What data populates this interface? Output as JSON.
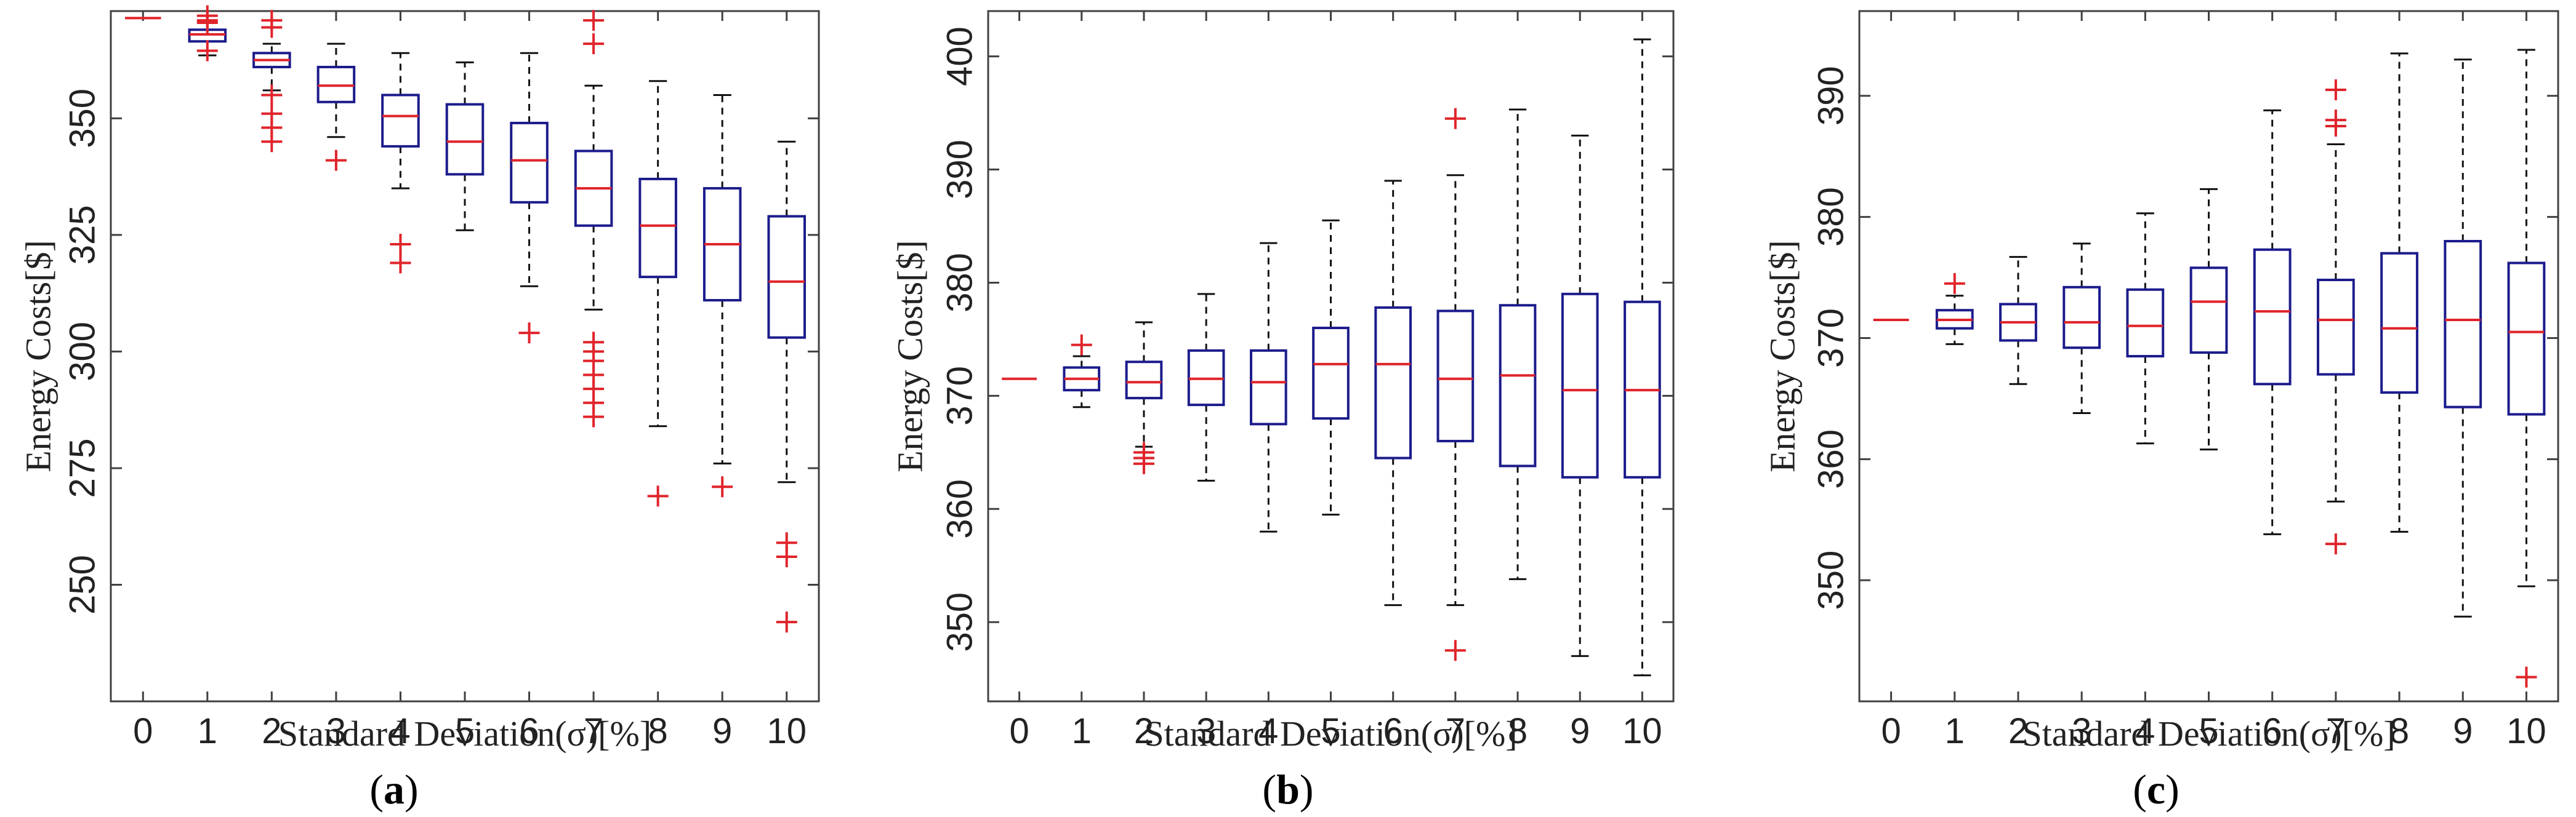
{
  "colors": {
    "box": "#1c1c8c",
    "median": "#e0242b",
    "outlier": "#e0242b",
    "whisker": "#111111",
    "axis": "#404040"
  },
  "chart_data": [
    {
      "type": "boxplot",
      "panel_label": "a",
      "title": "",
      "xlabel": "Standard Deviation(σ)[%]",
      "ylabel": "Energy Costs[$]",
      "categories": [
        "0",
        "1",
        "2",
        "3",
        "4",
        "5",
        "6",
        "7",
        "8",
        "9",
        "10"
      ],
      "ylim": [
        225,
        373
      ],
      "yticks": [
        250,
        275,
        300,
        325,
        350
      ],
      "boxes": [
        {
          "x": "0",
          "q1": 371.5,
          "median": 371.5,
          "q3": 371.5,
          "low": 371.5,
          "high": 371.5,
          "outliers": []
        },
        {
          "x": "1",
          "q1": 366.5,
          "median": 368,
          "q3": 369,
          "low": 363.5,
          "high": 372,
          "outliers": [
            371,
            372,
            370.5,
            364.5
          ]
        },
        {
          "x": "2",
          "q1": 361,
          "median": 362.5,
          "q3": 364,
          "low": 356,
          "high": 366,
          "outliers": [
            371,
            369.5,
            355,
            351,
            348,
            345
          ]
        },
        {
          "x": "3",
          "q1": 353.5,
          "median": 357,
          "q3": 361,
          "low": 346,
          "high": 366,
          "outliers": [
            341
          ]
        },
        {
          "x": "4",
          "q1": 344,
          "median": 350.5,
          "q3": 355,
          "low": 335,
          "high": 364,
          "outliers": [
            323,
            319
          ]
        },
        {
          "x": "5",
          "q1": 338,
          "median": 345,
          "q3": 353,
          "low": 326,
          "high": 362,
          "outliers": []
        },
        {
          "x": "6",
          "q1": 332,
          "median": 341,
          "q3": 349,
          "low": 314,
          "high": 364,
          "outliers": [
            304
          ]
        },
        {
          "x": "7",
          "q1": 327,
          "median": 335,
          "q3": 343,
          "low": 309,
          "high": 357,
          "outliers": [
            371,
            366,
            302,
            300,
            298,
            295,
            292,
            289,
            286
          ]
        },
        {
          "x": "8",
          "q1": 316,
          "median": 327,
          "q3": 337,
          "low": 284,
          "high": 358,
          "outliers": [
            269
          ]
        },
        {
          "x": "9",
          "q1": 311,
          "median": 323,
          "q3": 335,
          "low": 276,
          "high": 355,
          "outliers": [
            271
          ]
        },
        {
          "x": "10",
          "q1": 303,
          "median": 315,
          "q3": 329,
          "low": 272,
          "high": 345,
          "outliers": [
            259,
            256,
            242
          ]
        }
      ]
    },
    {
      "type": "boxplot",
      "panel_label": "b",
      "title": "",
      "xlabel": "Standard Deviation(σ)[%]",
      "ylabel": "Energy Costs[$]",
      "categories": [
        "0",
        "1",
        "2",
        "3",
        "4",
        "5",
        "6",
        "7",
        "8",
        "9",
        "10"
      ],
      "ylim": [
        343,
        404
      ],
      "yticks": [
        350,
        360,
        370,
        380,
        390,
        400
      ],
      "boxes": [
        {
          "x": "0",
          "q1": 371.5,
          "median": 371.5,
          "q3": 371.5,
          "low": 371.5,
          "high": 371.5,
          "outliers": []
        },
        {
          "x": "1",
          "q1": 370.5,
          "median": 371.5,
          "q3": 372.5,
          "low": 369,
          "high": 373.5,
          "outliers": [
            374.5
          ]
        },
        {
          "x": "2",
          "q1": 369.8,
          "median": 371.2,
          "q3": 373,
          "low": 365.5,
          "high": 376.5,
          "outliers": [
            365,
            364.5,
            364
          ]
        },
        {
          "x": "3",
          "q1": 369.2,
          "median": 371.5,
          "q3": 374,
          "low": 362.5,
          "high": 379,
          "outliers": []
        },
        {
          "x": "4",
          "q1": 367.5,
          "median": 371.2,
          "q3": 374,
          "low": 358,
          "high": 383.5,
          "outliers": []
        },
        {
          "x": "5",
          "q1": 368,
          "median": 372.8,
          "q3": 376,
          "low": 359.5,
          "high": 385.5,
          "outliers": []
        },
        {
          "x": "6",
          "q1": 364.5,
          "median": 372.8,
          "q3": 377.8,
          "low": 351.5,
          "high": 389,
          "outliers": []
        },
        {
          "x": "7",
          "q1": 366,
          "median": 371.5,
          "q3": 377.5,
          "low": 351.5,
          "high": 389.5,
          "outliers": [
            394.5,
            347.5
          ]
        },
        {
          "x": "8",
          "q1": 363.8,
          "median": 371.8,
          "q3": 378,
          "low": 353.8,
          "high": 395.3,
          "outliers": []
        },
        {
          "x": "9",
          "q1": 362.8,
          "median": 370.5,
          "q3": 379,
          "low": 347,
          "high": 393,
          "outliers": []
        },
        {
          "x": "10",
          "q1": 362.8,
          "median": 370.5,
          "q3": 378.3,
          "low": 345.3,
          "high": 401.5,
          "outliers": []
        }
      ]
    },
    {
      "type": "boxplot",
      "panel_label": "c",
      "title": "",
      "xlabel": "Standard Deviation(σ)[%]",
      "ylabel": "Energy Costs[$]",
      "categories": [
        "0",
        "1",
        "2",
        "3",
        "4",
        "5",
        "6",
        "7",
        "8",
        "9",
        "10"
      ],
      "ylim": [
        340,
        397
      ],
      "yticks": [
        350,
        360,
        370,
        380,
        390
      ],
      "boxes": [
        {
          "x": "0",
          "q1": 371.5,
          "median": 371.5,
          "q3": 371.5,
          "low": 371.5,
          "high": 371.5,
          "outliers": []
        },
        {
          "x": "1",
          "q1": 370.8,
          "median": 371.5,
          "q3": 372.3,
          "low": 369.5,
          "high": 373.5,
          "outliers": [
            374.5
          ]
        },
        {
          "x": "2",
          "q1": 369.8,
          "median": 371.3,
          "q3": 372.8,
          "low": 366.2,
          "high": 376.7,
          "outliers": []
        },
        {
          "x": "3",
          "q1": 369.2,
          "median": 371.3,
          "q3": 374.2,
          "low": 363.8,
          "high": 377.8,
          "outliers": []
        },
        {
          "x": "4",
          "q1": 368.5,
          "median": 371,
          "q3": 374,
          "low": 361.3,
          "high": 380.3,
          "outliers": []
        },
        {
          "x": "5",
          "q1": 368.8,
          "median": 373,
          "q3": 375.8,
          "low": 360.8,
          "high": 382.3,
          "outliers": []
        },
        {
          "x": "6",
          "q1": 366.2,
          "median": 372.2,
          "q3": 377.3,
          "low": 353.8,
          "high": 388.8,
          "outliers": []
        },
        {
          "x": "7",
          "q1": 367,
          "median": 371.5,
          "q3": 374.8,
          "low": 356.5,
          "high": 386,
          "outliers": [
            390.5,
            388,
            387.5,
            353
          ]
        },
        {
          "x": "8",
          "q1": 365.5,
          "median": 370.8,
          "q3": 377,
          "low": 354,
          "high": 393.5,
          "outliers": []
        },
        {
          "x": "9",
          "q1": 364.3,
          "median": 371.5,
          "q3": 378,
          "low": 347,
          "high": 393,
          "outliers": []
        },
        {
          "x": "10",
          "q1": 363.7,
          "median": 370.5,
          "q3": 376.2,
          "low": 349.5,
          "high": 393.8,
          "outliers": [
            342
          ]
        }
      ]
    }
  ]
}
